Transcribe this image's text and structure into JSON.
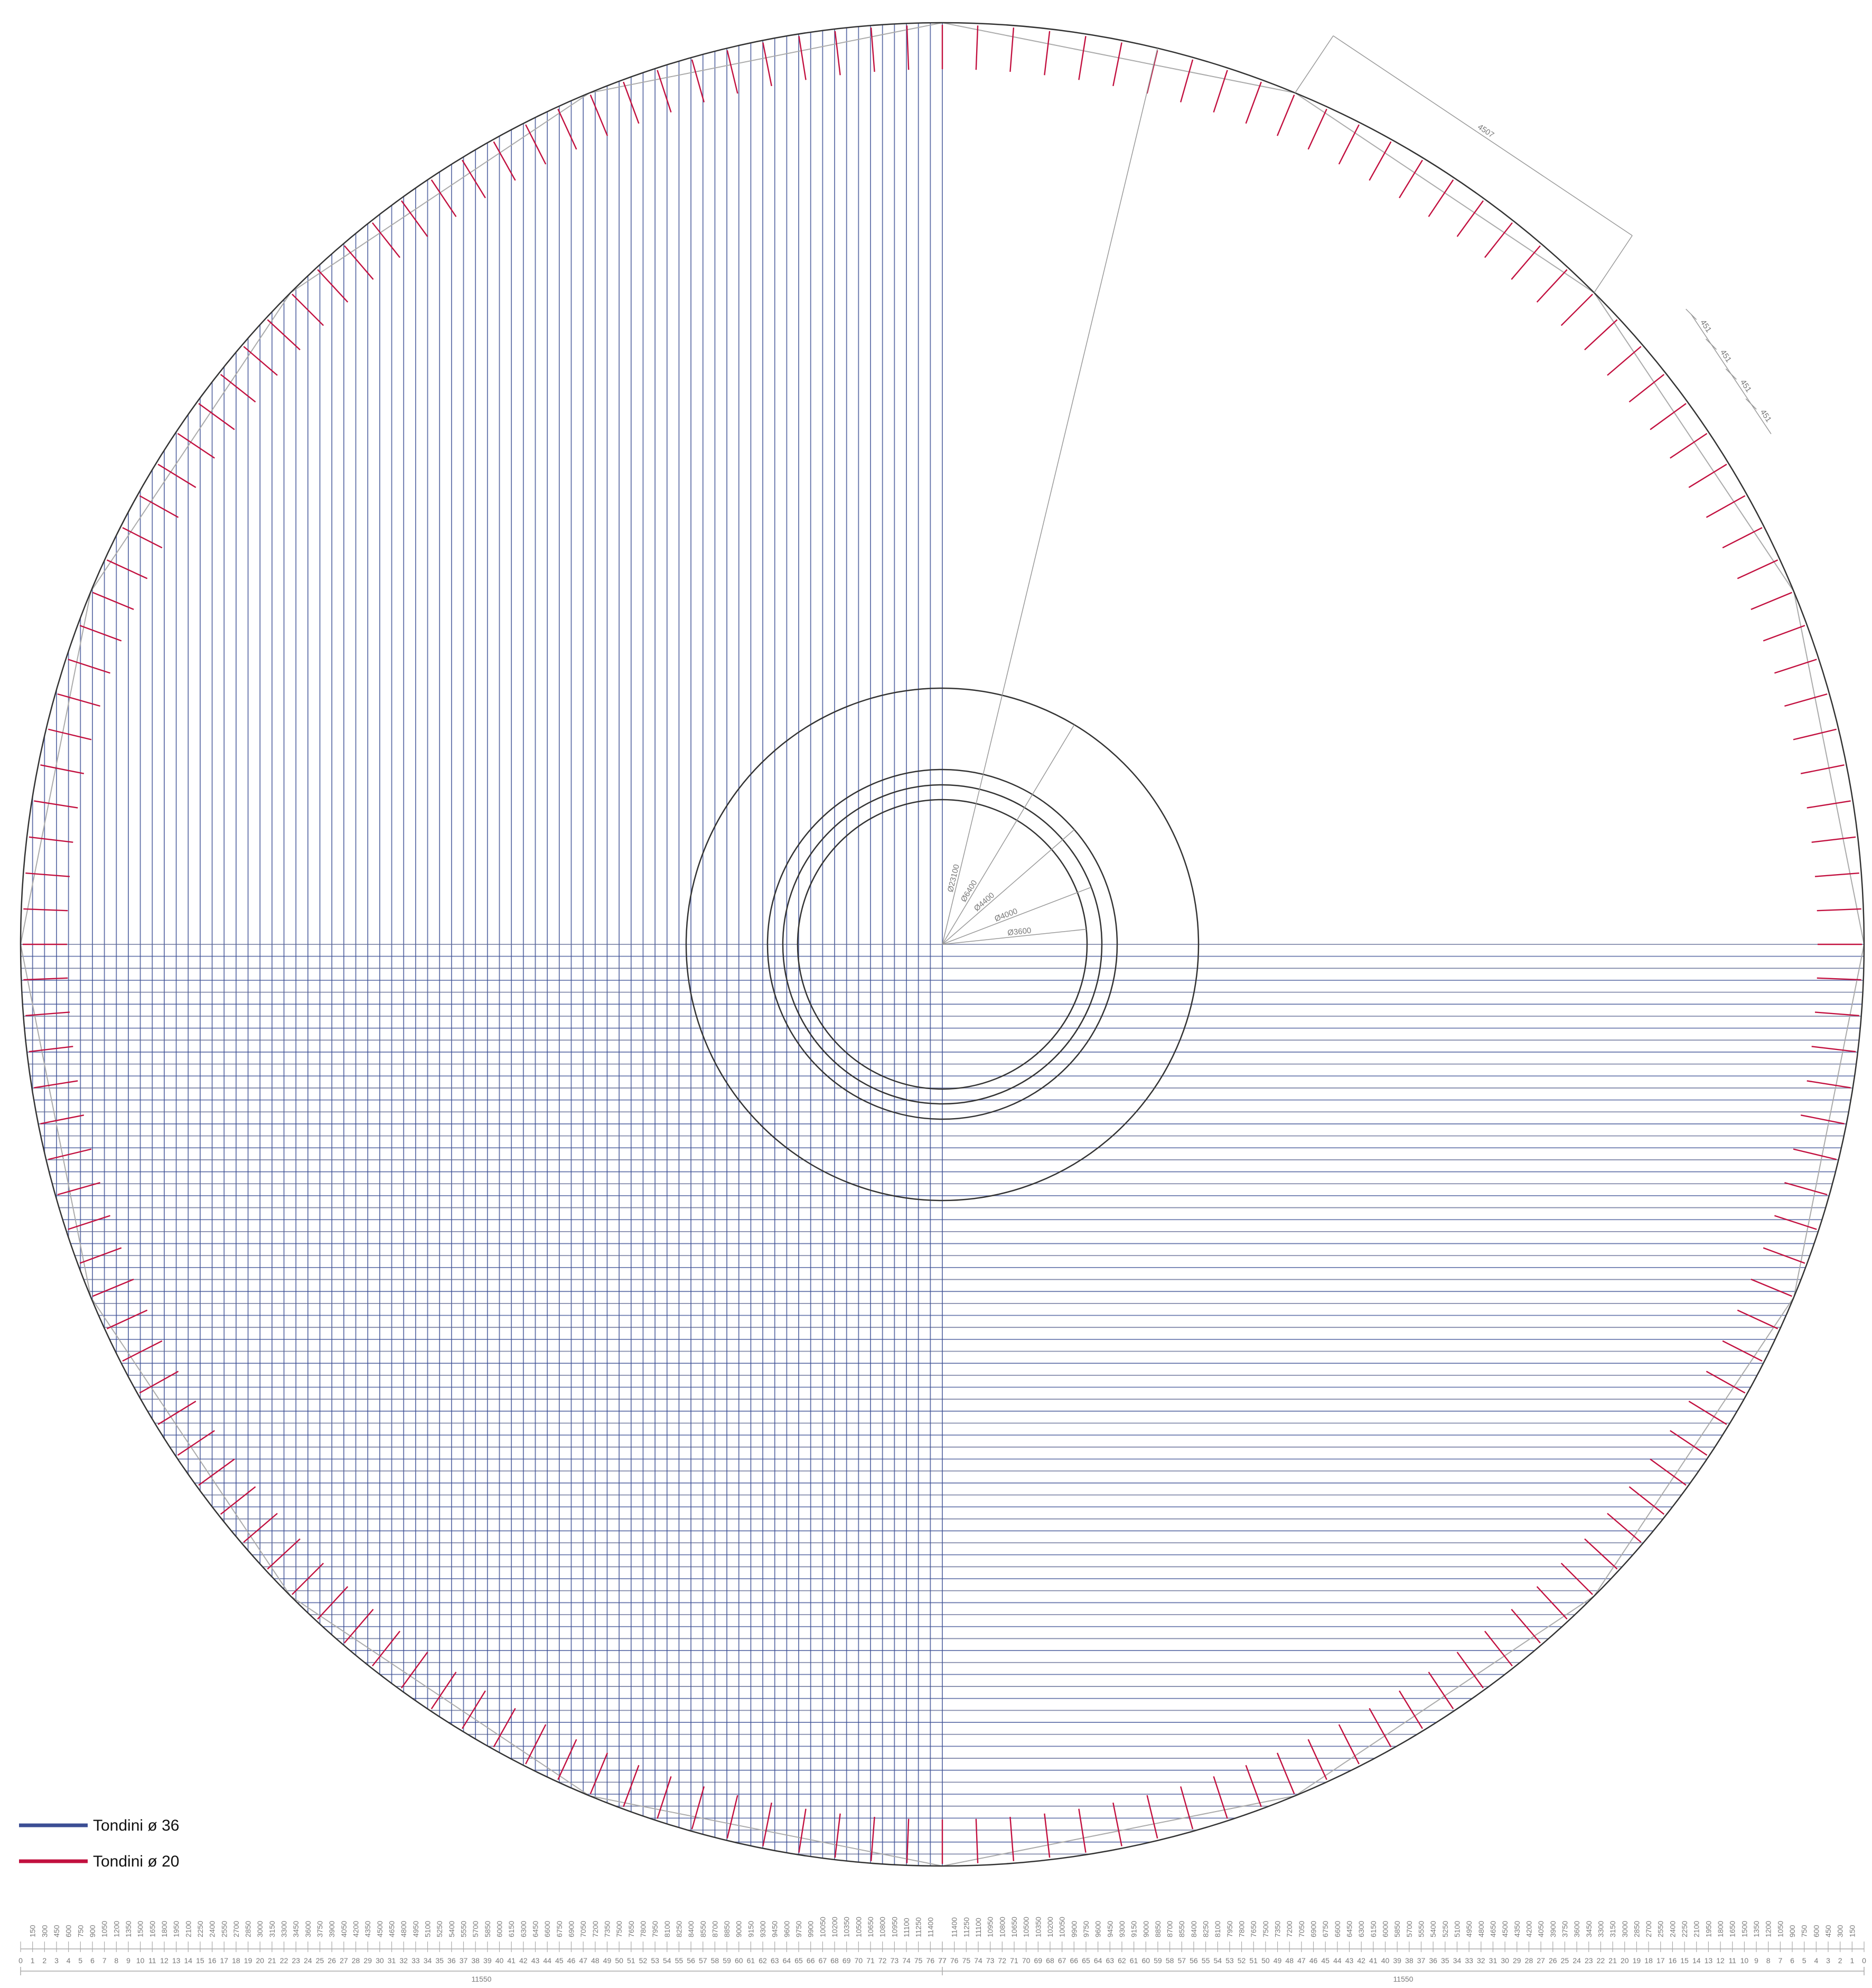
{
  "drawing": {
    "diameters": [
      "Ø23100",
      "Ø6400",
      "Ø4400",
      "Ø4000",
      "Ø3600"
    ],
    "side_length": "4507",
    "spacing_labels": [
      "451",
      "451",
      "451",
      "451"
    ],
    "legend": [
      {
        "label": "Tondini ø 36",
        "color": "#3b4e94"
      },
      {
        "label": "Tondini ø 20",
        "color": "#c2103f"
      }
    ],
    "ruler": {
      "cumulative": [
        150,
        300,
        450,
        600,
        750,
        900,
        1050,
        1200,
        1350,
        1500,
        1650,
        1800,
        1950,
        2100,
        2250,
        2400,
        2550,
        2700,
        2850,
        3000,
        3150,
        3300,
        3450,
        3600,
        3750,
        3900,
        4050,
        4200,
        4350,
        4500,
        4650,
        4800,
        4950,
        5100,
        5250,
        5400,
        5550,
        5700,
        5850,
        6000,
        6150,
        6300,
        6450,
        6600,
        6750,
        6900,
        7050,
        7200,
        7350,
        7500,
        7650,
        7800,
        7950,
        8100,
        8250,
        8400,
        8550,
        8700,
        8850,
        9000,
        9150,
        9300,
        9450,
        9600,
        9750,
        9900,
        10050,
        10200,
        10350,
        10500,
        10650,
        10800,
        10950,
        11100,
        11250,
        11400
      ],
      "indices": [
        0,
        1,
        2,
        3,
        4,
        5,
        6,
        7,
        8,
        9,
        10,
        11,
        12,
        13,
        14,
        15,
        16,
        17,
        18,
        19,
        20,
        21,
        22,
        23,
        24,
        25,
        26,
        27,
        28,
        29,
        30,
        31,
        32,
        33,
        34,
        35,
        36,
        37,
        38,
        39,
        40,
        41,
        42,
        43,
        44,
        45,
        46,
        47,
        48,
        49,
        50,
        51,
        52,
        53,
        54,
        55,
        56,
        57,
        58,
        59,
        60,
        61,
        62,
        63,
        64,
        65,
        66,
        67,
        68,
        69,
        70,
        71,
        72,
        73,
        74,
        75,
        76,
        77
      ],
      "totals": [
        11550,
        11550
      ]
    }
  }
}
